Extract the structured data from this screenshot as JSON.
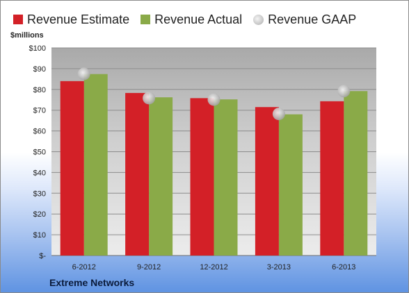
{
  "chart_data": {
    "type": "bar",
    "title": "",
    "ylabel": "$millions",
    "footer": "Extreme Networks",
    "categories": [
      "6-2012",
      "9-2012",
      "12-2012",
      "3-2013",
      "6-2013"
    ],
    "series": [
      {
        "name": "Revenue Estimate",
        "kind": "bar",
        "color": "#d32027",
        "values": [
          84,
          78.3,
          75.8,
          71.5,
          74.3
        ]
      },
      {
        "name": "Revenue Actual",
        "kind": "bar",
        "color": "#8aaa48",
        "values": [
          87.4,
          76.2,
          75.2,
          68,
          79.2
        ]
      },
      {
        "name": "Revenue GAAP",
        "kind": "marker",
        "color": "#c4c4c4",
        "values": [
          87.5,
          75.8,
          75.1,
          68.2,
          79.2
        ]
      }
    ],
    "ylim": [
      0,
      100
    ],
    "yticks": [
      0,
      10,
      20,
      30,
      40,
      50,
      60,
      70,
      80,
      90,
      100
    ],
    "ytick_labels": [
      "$-",
      "$10",
      "$20",
      "$30",
      "$40",
      "$50",
      "$60",
      "$70",
      "$80",
      "$90",
      "$100"
    ],
    "grid": true,
    "legend_position": "top"
  }
}
